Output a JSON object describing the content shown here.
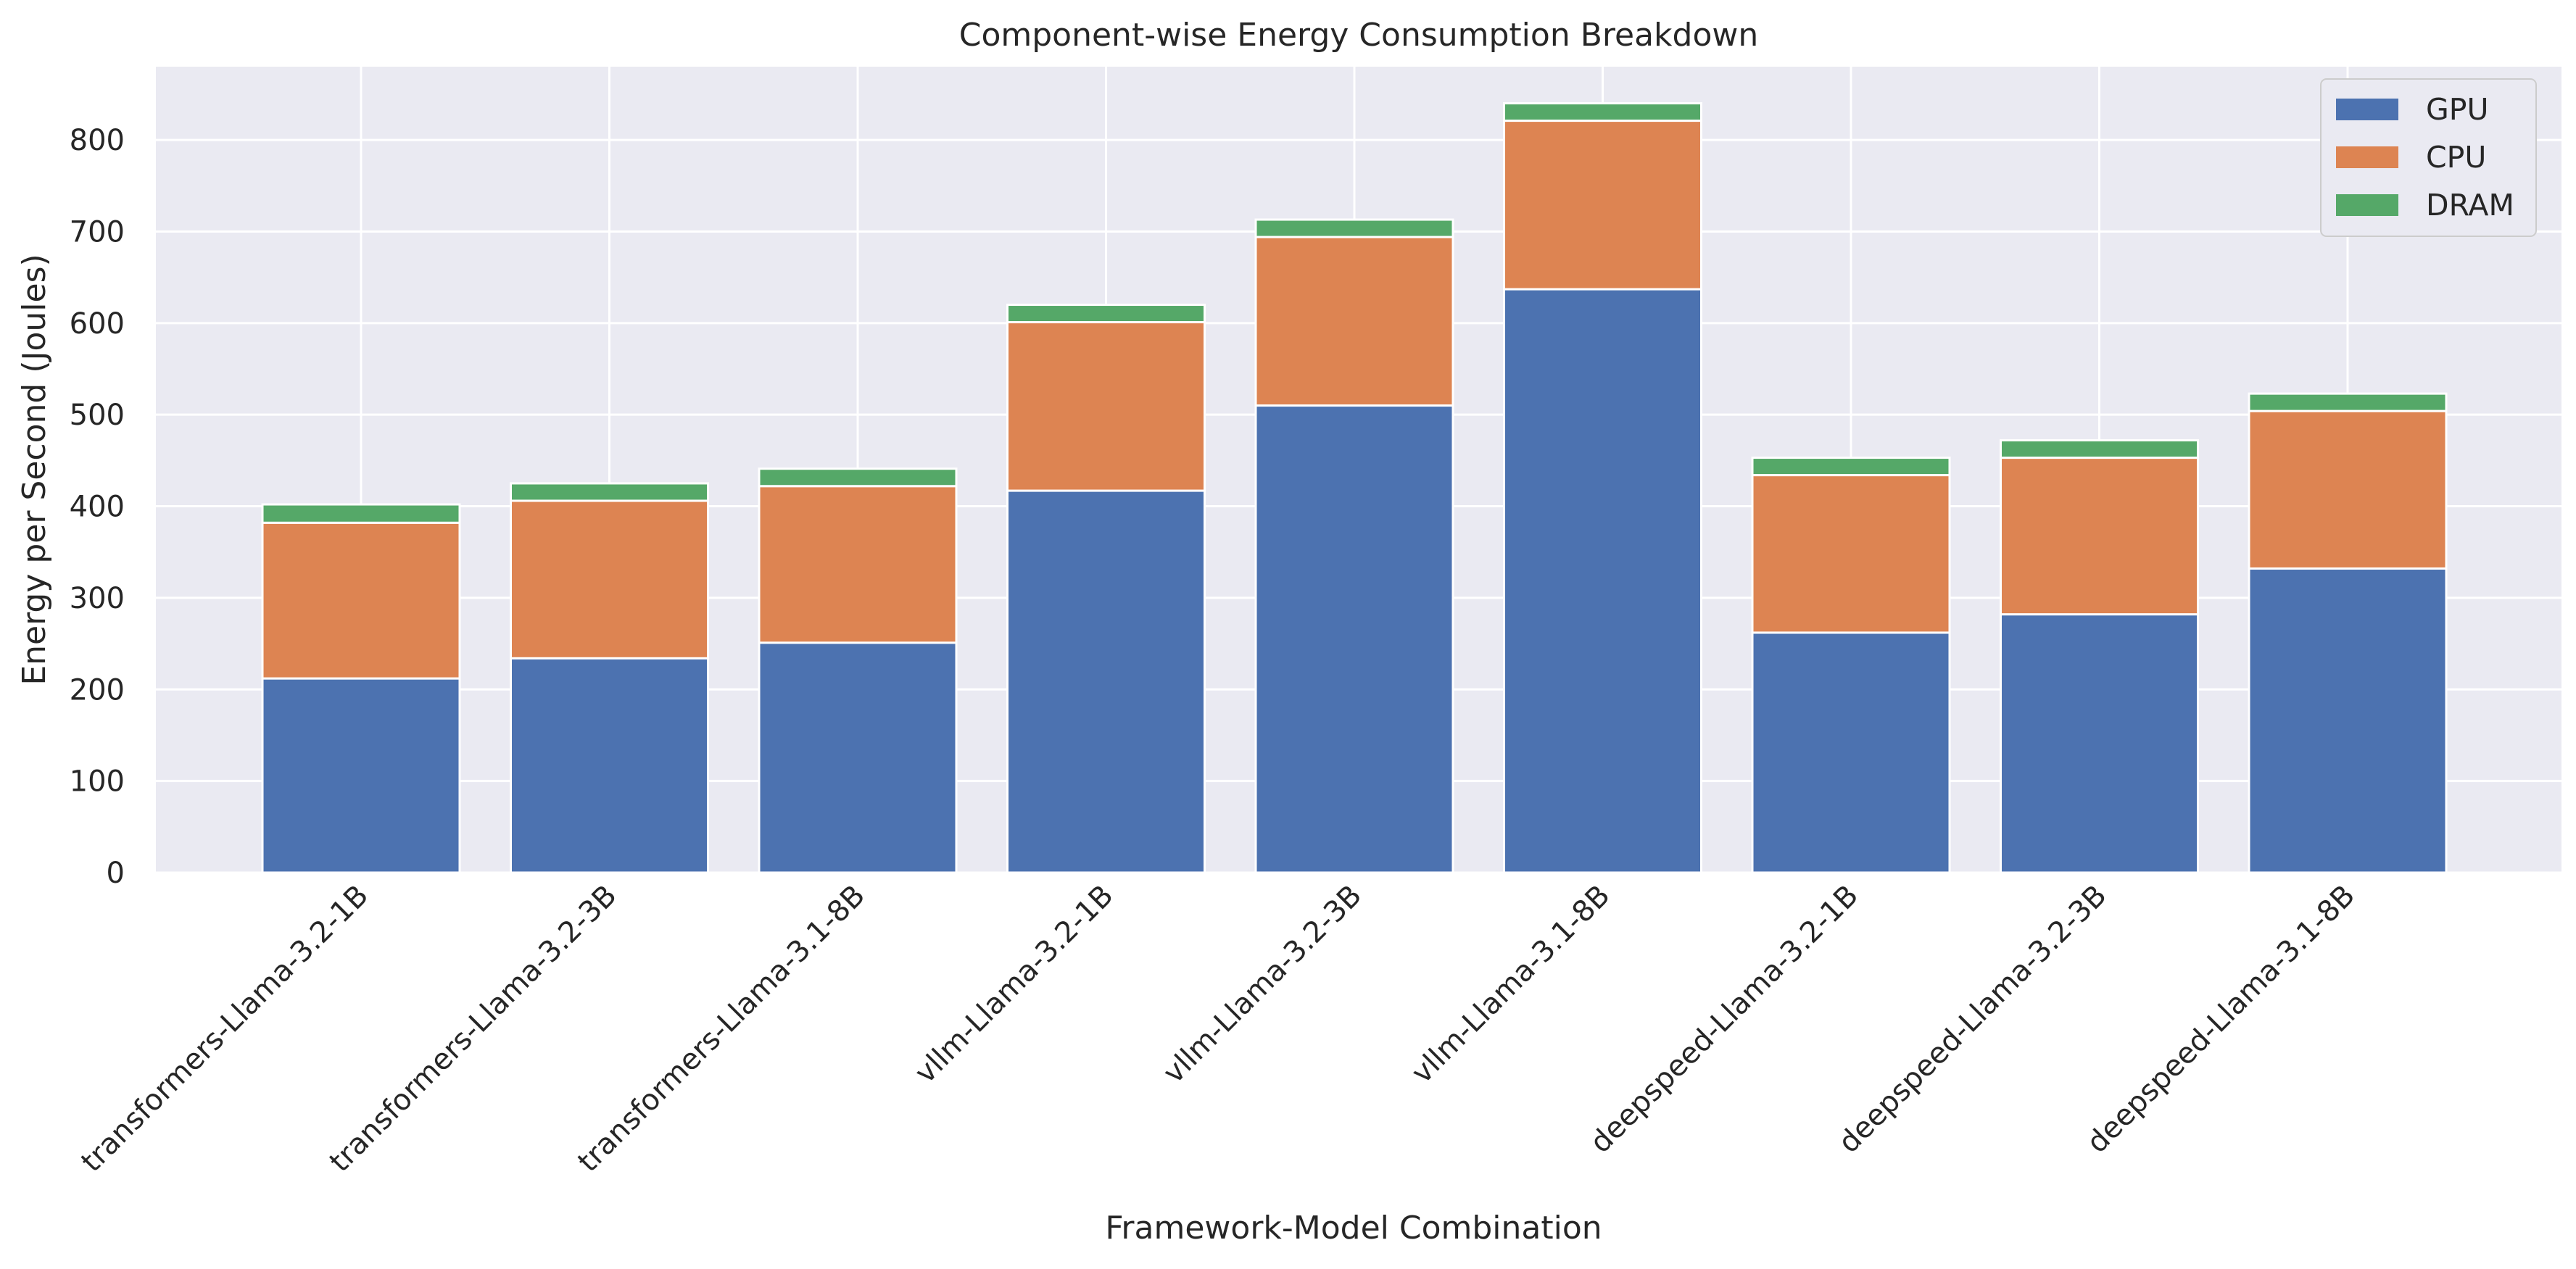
{
  "chart_data": {
    "type": "bar",
    "stacked": true,
    "title": "Component-wise Energy Consumption Breakdown",
    "xlabel": "Framework-Model Combination",
    "ylabel": "Energy per Second (Joules)",
    "ylim": [
      0,
      880
    ],
    "yticks": [
      "0",
      "100",
      "200",
      "300",
      "400",
      "500",
      "600",
      "700",
      "800"
    ],
    "categories": [
      "transformers-Llama-3.2-1B",
      "transformers-Llama-3.2-3B",
      "transformers-Llama-3.1-8B",
      "vllm-Llama-3.2-1B",
      "vllm-Llama-3.2-3B",
      "vllm-Llama-3.1-8B",
      "deepspeed-Llama-3.2-1B",
      "deepspeed-Llama-3.2-3B",
      "deepspeed-Llama-3.1-8B"
    ],
    "series": [
      {
        "name": "GPU",
        "color": "#4c72b0",
        "values": [
          212,
          234,
          251,
          417,
          510,
          637,
          262,
          282,
          332
        ]
      },
      {
        "name": "CPU",
        "color": "#dd8452",
        "values": [
          170,
          172,
          171,
          184,
          184,
          184,
          172,
          171,
          172
        ]
      },
      {
        "name": "DRAM",
        "color": "#55a868",
        "values": [
          20,
          19,
          19,
          19,
          19,
          19,
          19,
          19,
          19
        ]
      }
    ],
    "grid": true,
    "legend": "top-right"
  }
}
